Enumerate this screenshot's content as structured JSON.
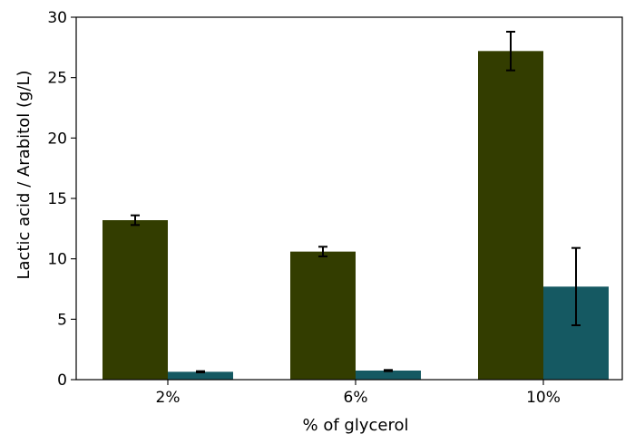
{
  "chart_data": {
    "type": "bar",
    "title": "",
    "xlabel": "% of glycerol",
    "ylabel": "Lactic acid / Arabitol (g/L)",
    "categories": [
      "2%",
      "6%",
      "10%"
    ],
    "ylim": [
      0,
      30
    ],
    "yticks": [
      0,
      5,
      10,
      15,
      20,
      25,
      30
    ],
    "grid": false,
    "legend": "none",
    "series": [
      {
        "color": "#333d00",
        "values": [
          13.2,
          10.6,
          27.2
        ],
        "errors": [
          0.4,
          0.4,
          1.6
        ]
      },
      {
        "color": "#155962",
        "values": [
          0.65,
          0.75,
          7.7
        ],
        "errors": [
          0.05,
          0.05,
          3.2
        ]
      }
    ]
  }
}
